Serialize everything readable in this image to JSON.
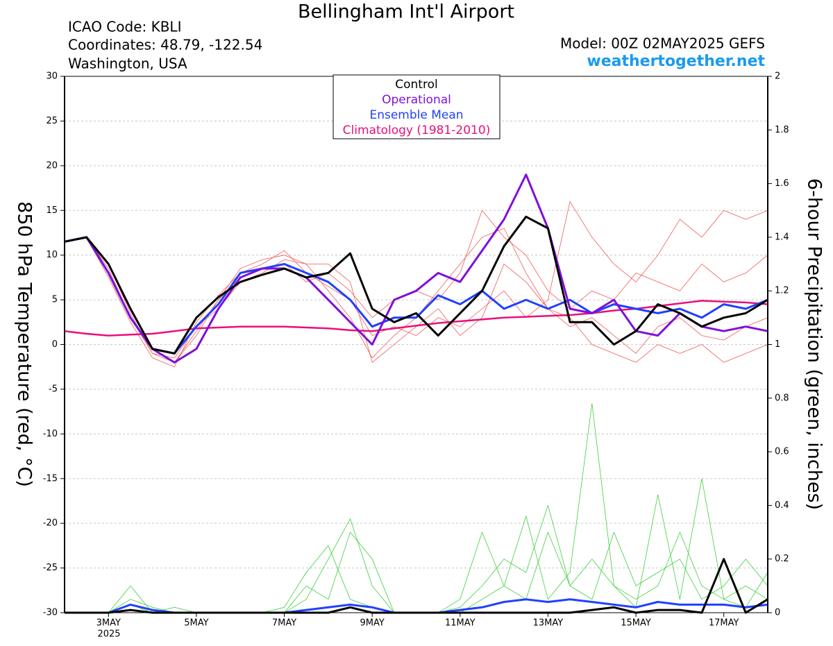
{
  "header": {
    "title": "Bellingham Int'l Airport",
    "icao": "ICAO Code: KBLI",
    "coordinates": "Coordinates: 48.79, -122.54",
    "location": "Washington, USA",
    "model": "Model: 00Z 02MAY2025 GEFS",
    "site": "weathertogether.net"
  },
  "chart_data": {
    "type": "line",
    "y_label": "850 hPa Temperature (red, °C)",
    "y2_label": "6-hour Precipitation (green, inches)",
    "year_label": "2025",
    "x": [
      0,
      12,
      24,
      36,
      48,
      60,
      72,
      84,
      96,
      108,
      120,
      132,
      144,
      156,
      168,
      180,
      192,
      204,
      216,
      228,
      240,
      252,
      264,
      276,
      288,
      300,
      312,
      324,
      336,
      348,
      360,
      372,
      384
    ],
    "xlim": [
      0,
      384
    ],
    "xticks": [
      {
        "value": 24,
        "label": "3MAY"
      },
      {
        "value": 72,
        "label": "5MAY"
      },
      {
        "value": 120,
        "label": "7MAY"
      },
      {
        "value": 168,
        "label": "9MAY"
      },
      {
        "value": 216,
        "label": "11MAY"
      },
      {
        "value": 264,
        "label": "13MAY"
      },
      {
        "value": 312,
        "label": "15MAY"
      },
      {
        "value": 360,
        "label": "17MAY"
      }
    ],
    "ylim": [
      -30,
      30
    ],
    "yticks": [
      -30,
      -25,
      -20,
      -15,
      -10,
      -5,
      0,
      5,
      10,
      15,
      20,
      25,
      30
    ],
    "y2lim": [
      0,
      2
    ],
    "y2ticks": [
      0,
      0.2,
      0.4,
      0.6,
      0.8,
      1,
      1.2,
      1.4,
      1.6,
      1.8,
      2
    ],
    "grid": true,
    "legend": "top",
    "series": [
      {
        "color": "#f05a5a",
        "values": [
          11.5,
          12,
          9,
          3.5,
          -1,
          -2,
          1,
          5,
          8.5,
          9.5,
          10,
          9,
          6,
          3,
          -1.5,
          1,
          3,
          6,
          9,
          12,
          13,
          8,
          4,
          2,
          3,
          1,
          -1,
          2,
          3,
          1,
          0.5,
          2,
          3
        ]
      },
      {
        "color": "#f05a5a",
        "values": [
          11.5,
          12,
          7.5,
          2.5,
          -1.5,
          -2.5,
          2.5,
          5.5,
          8,
          9,
          10.5,
          8,
          6.5,
          5,
          1,
          2,
          1,
          3,
          2,
          4,
          6,
          3,
          5,
          16,
          12,
          9,
          7,
          10,
          14,
          12,
          15,
          14,
          15
        ]
      },
      {
        "color": "#f05a5a",
        "values": [
          11.5,
          12,
          8.5,
          3,
          -1,
          -1.5,
          2,
          4,
          7,
          8,
          9.5,
          9,
          9,
          7,
          -2,
          0,
          2,
          4,
          1,
          3,
          9,
          7,
          4,
          3,
          0,
          -1,
          -2,
          0,
          -1,
          0,
          -2,
          -1,
          0
        ]
      },
      {
        "color": "#f05a5a",
        "values": [
          11.5,
          12,
          8,
          3,
          -0.5,
          -2,
          1.5,
          5,
          7.5,
          8.5,
          9,
          7,
          8,
          6,
          3,
          5,
          6,
          5,
          8,
          15,
          12,
          10,
          6,
          4,
          6,
          5,
          8,
          7,
          6,
          9,
          7,
          8,
          10
        ]
      },
      {
        "color": "#3ccf3c",
        "axis": "y2",
        "values": [
          0,
          0,
          0,
          0.1,
          0,
          0,
          0,
          0,
          0,
          0,
          0,
          0.05,
          0.2,
          0.35,
          0.1,
          0,
          0,
          0,
          0,
          0.05,
          0.1,
          0.36,
          0.05,
          0.15,
          0.78,
          0.1,
          0.02,
          0.44,
          0.05,
          0.5,
          0.05,
          0.02,
          0.15
        ]
      },
      {
        "color": "#3ccf3c",
        "axis": "y2",
        "values": [
          0,
          0,
          0,
          0.05,
          0.02,
          0,
          0,
          0,
          0,
          0,
          0,
          0.1,
          0.05,
          0.3,
          0.2,
          0,
          0,
          0,
          0.02,
          0.1,
          0.2,
          0.15,
          0.4,
          0.1,
          0.05,
          0.3,
          0.1,
          0.15,
          0.2,
          0.05,
          0.1,
          0.2,
          0.1
        ]
      },
      {
        "color": "#3ccf3c",
        "axis": "y2",
        "values": [
          0,
          0,
          0,
          0.03,
          0,
          0.02,
          0,
          0,
          0,
          0,
          0.02,
          0.15,
          0.25,
          0.05,
          0.02,
          0,
          0,
          0,
          0.05,
          0.3,
          0.1,
          0.05,
          0.3,
          0.1,
          0.2,
          0.1,
          0.05,
          0.1,
          0.3,
          0.1,
          0.05,
          0.1,
          0.05
        ]
      },
      {
        "color": "#2040ff",
        "axis": "y2",
        "values": [
          0,
          0,
          0,
          0.03,
          0.01,
          0,
          0,
          0,
          0,
          0,
          0,
          0.01,
          0.02,
          0.03,
          0.02,
          0,
          0,
          0,
          0.01,
          0.02,
          0.04,
          0.05,
          0.04,
          0.05,
          0.04,
          0.03,
          0.02,
          0.04,
          0.03,
          0.03,
          0.03,
          0.02,
          0.03
        ]
      },
      {
        "color": "#000000",
        "axis": "y2",
        "values": [
          0,
          0,
          0,
          0.01,
          0,
          0,
          0,
          0,
          0,
          0,
          0,
          0,
          0,
          0.02,
          0,
          0,
          0,
          0,
          0,
          0,
          0,
          0,
          0,
          0,
          0.01,
          0.02,
          0,
          0.01,
          0.01,
          0,
          0.2,
          0,
          0.05
        ]
      },
      {
        "name": "Climatology (1981-2010)",
        "color": "#e8107a",
        "values": [
          1.5,
          1.2,
          1,
          1.1,
          1.2,
          1.5,
          1.8,
          1.9,
          2,
          2,
          2,
          1.9,
          1.8,
          1.6,
          1.5,
          1.8,
          2.1,
          2.4,
          2.6,
          2.8,
          3,
          3.1,
          3.2,
          3.3,
          3.5,
          3.8,
          4,
          4.3,
          4.6,
          4.9,
          4.8,
          4.7,
          4.5
        ]
      },
      {
        "name": "Ensemble Mean",
        "color": "#2040ff",
        "values": [
          11.5,
          12,
          8,
          3,
          -0.5,
          -1,
          2,
          4.5,
          8,
          8.5,
          9,
          8,
          7,
          5,
          2,
          3,
          3,
          5.5,
          4.5,
          6,
          4,
          5,
          4,
          5,
          3.5,
          4.5,
          4,
          3.5,
          4,
          3,
          4.5,
          4,
          5
        ]
      },
      {
        "name": "Operational",
        "color": "#7f10d8",
        "values": [
          11.5,
          12,
          8,
          3,
          -0.5,
          -2,
          -0.5,
          4,
          7.5,
          8.5,
          8.5,
          7.5,
          5,
          2.5,
          0,
          5,
          6,
          8,
          7,
          10.5,
          14,
          19,
          13,
          4,
          3.5,
          5,
          1.5,
          1,
          3.5,
          2,
          1.5,
          2,
          1.5
        ]
      },
      {
        "name": "Control",
        "color": "#000000",
        "values": [
          11.5,
          12,
          9,
          4,
          -0.5,
          -1,
          3,
          5.3,
          7,
          7.8,
          8.5,
          7.5,
          8,
          10.2,
          4,
          2.5,
          3.5,
          1,
          3.5,
          6,
          11,
          14.3,
          13,
          2.5,
          2.5,
          0,
          1.5,
          4.5,
          3.5,
          2,
          3,
          3.5,
          5
        ]
      }
    ]
  }
}
